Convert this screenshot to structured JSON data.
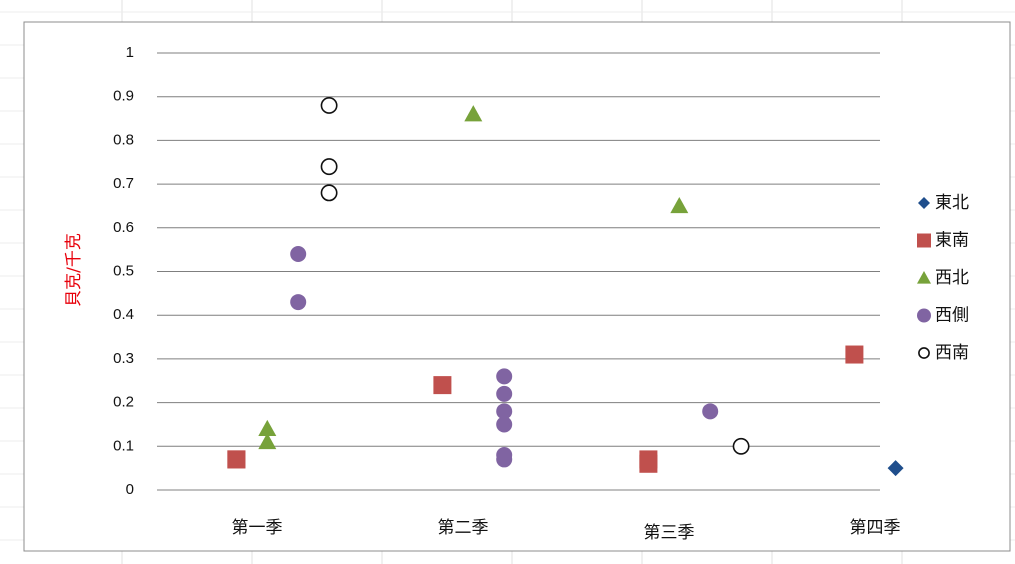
{
  "chart_data": {
    "type": "scatter",
    "title": "",
    "xlabel": "",
    "ylabel": "貝克/千克",
    "ylabel_color": "#e8000b",
    "ylim": [
      0,
      1
    ],
    "yticks": [
      "0",
      "0.1",
      "0.2",
      "0.3",
      "0.4",
      "0.5",
      "0.6",
      "0.7",
      "0.8",
      "0.9",
      "1"
    ],
    "categories": [
      "第一季",
      "第二季",
      "第三季",
      "第四季"
    ],
    "grid": true,
    "legend_position": "right",
    "series": [
      {
        "name": "東北",
        "marker": "diamond",
        "color": "#1f4e8c",
        "points": [
          {
            "x": 4.1,
            "y": 0.05
          }
        ]
      },
      {
        "name": "東南",
        "marker": "square",
        "color": "#c0504d",
        "points": [
          {
            "x": 0.9,
            "y": 0.07
          },
          {
            "x": 0.9,
            "y": 0.07
          },
          {
            "x": 1.9,
            "y": 0.24
          },
          {
            "x": 2.9,
            "y": 0.07
          },
          {
            "x": 2.9,
            "y": 0.06
          },
          {
            "x": 3.9,
            "y": 0.31
          }
        ]
      },
      {
        "name": "西北",
        "marker": "triangle",
        "color": "#77a23a",
        "points": [
          {
            "x": 1.05,
            "y": 0.14
          },
          {
            "x": 1.05,
            "y": 0.11
          },
          {
            "x": 2.05,
            "y": 0.86
          },
          {
            "x": 3.05,
            "y": 0.65
          }
        ]
      },
      {
        "name": "西側",
        "marker": "circle",
        "color": "#8064a2",
        "points": [
          {
            "x": 1.2,
            "y": 0.54
          },
          {
            "x": 1.2,
            "y": 0.43
          },
          {
            "x": 2.2,
            "y": 0.26
          },
          {
            "x": 2.2,
            "y": 0.22
          },
          {
            "x": 2.2,
            "y": 0.18
          },
          {
            "x": 2.2,
            "y": 0.15
          },
          {
            "x": 2.2,
            "y": 0.08
          },
          {
            "x": 2.2,
            "y": 0.07
          },
          {
            "x": 3.2,
            "y": 0.18
          }
        ]
      },
      {
        "name": "西南",
        "marker": "open-circle",
        "color": "#111111",
        "points": [
          {
            "x": 1.35,
            "y": 0.88
          },
          {
            "x": 1.35,
            "y": 0.74
          },
          {
            "x": 1.35,
            "y": 0.68
          },
          {
            "x": 3.35,
            "y": 0.1
          }
        ]
      }
    ]
  }
}
